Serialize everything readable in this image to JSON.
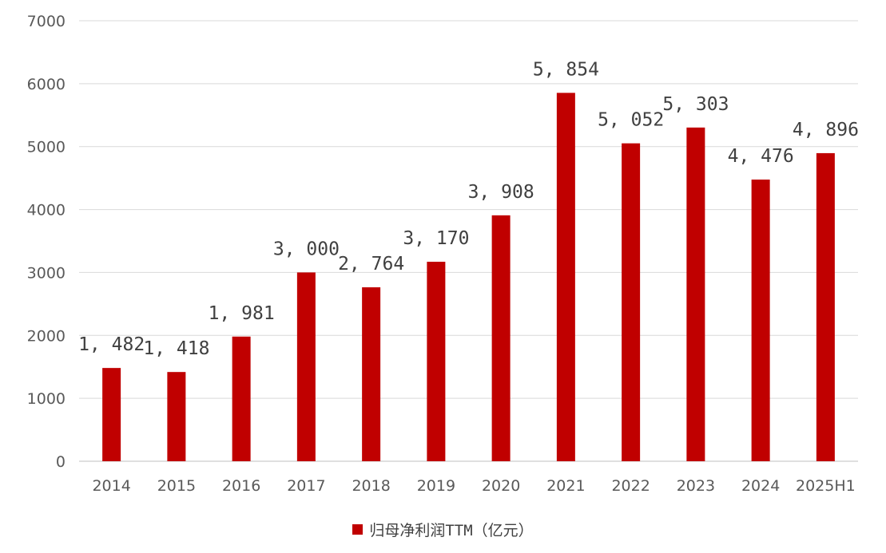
{
  "chart_data": {
    "type": "bar",
    "title": "",
    "xlabel": "",
    "ylabel": "",
    "categories": [
      "2014",
      "2015",
      "2016",
      "2017",
      "2018",
      "2019",
      "2020",
      "2021",
      "2022",
      "2023",
      "2024",
      "2025H1"
    ],
    "series": [
      {
        "name": "归母净利润TTM（亿元）",
        "values": [
          1482,
          1418,
          1981,
          3000,
          2764,
          3170,
          3908,
          5854,
          5052,
          5303,
          4476,
          4896
        ],
        "labels": [
          "1, 482",
          "1, 418",
          "1, 981",
          "3, 000",
          "2, 764",
          "3, 170",
          "3, 908",
          "5, 854",
          "5, 052",
          "5, 303",
          "4, 476",
          "4, 896"
        ],
        "color": "#C00000"
      }
    ],
    "ylim": [
      0,
      7000
    ],
    "yticks": [
      0,
      1000,
      2000,
      3000,
      4000,
      5000,
      6000,
      7000
    ],
    "grid": true,
    "legend": "bottom-center"
  }
}
